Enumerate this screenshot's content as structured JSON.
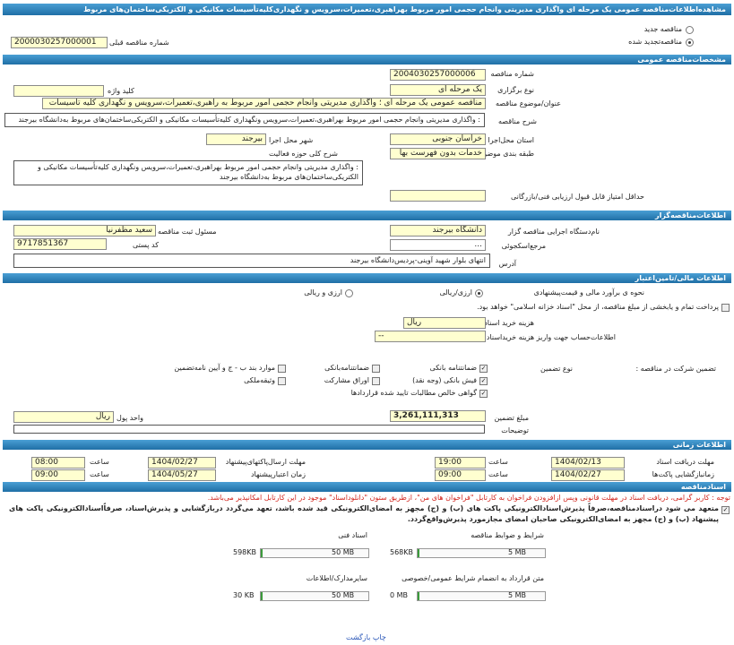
{
  "header": {
    "title": "مشاهده‌اطلاعات‌مناقصه عمومی یک مرحله ای واگذاری مدیریتی وانجام حجمی امور مربوط بهراهبری،تعمیرات،سرویس و نگهداری‌کلیه‌تأسیسات مکانیکی و الکتریکی‌ساختمان‌های مربوط"
  },
  "status": {
    "new": "مناقصه جدید",
    "renewed": "مناقصه‌تجدید شده",
    "previous_label": "شماره مناقصه قبلی",
    "previous": "2000030257000001"
  },
  "general": {
    "heading": "مشخصات‌مناقصه عمومی",
    "number_label": "شماره مناقصه",
    "number": "2004030257000006",
    "method_label": "نوع برگزاری",
    "method": "یک مرحله ای",
    "keyword_label": "کلید واژه",
    "subject_label": "عنوان/موضوع مناقصه",
    "subject": "مناقصه عمومی یک مرحله ای ؛ واگذاری مدیریتی وانجام حجمی امور مربوط به راهبری،تعمیرات،سرویس و نگهداری کلیه تاسیسات",
    "description_label": "شرح مناقصه",
    "description": ": واگذاری مدیریتی وانجام حجمی امور مربوط بهراهبری،تعمیرات،سرویس ونگهداری کلیه‌تأسیسات مکانیکی و الکتریکی‌ساختمان‌های مربوط به‌دانشگاه بیرجند",
    "province_label": "استان محل‌اجرا",
    "province": "خراسان جنوبی",
    "city_label": "شهر محل اجرا",
    "city": "بیرجند",
    "category_label": "طبقه بندی موضوعی",
    "category": "خدمات بدون فهرست بها",
    "scope_label": "شرح کلی حوزه فعالیت",
    "scope": ": واگذاری مدیریتی وانجام حجمی امور مربوط بهراهبری،تعمیرات،سرویس ونگهداری کلیه‌تأسیسات مکانیکی و الکتریکی‌ساختمان‌های مربوط به‌دانشگاه بیرجند",
    "min_score_label": "حداقل امتیاز قابل قبول ارزیابی فنی/بازرگانی"
  },
  "organizer": {
    "heading": "اطلاعات‌مناقصه‌گزار",
    "agency_label": "نام‌دستگاه اجرایی مناقصه گزار",
    "agency": "دانشگاه بیرجند",
    "registrar_label": "مسئول ثبت مناقصه",
    "registrar": "سعید مظفرنیا",
    "reference_label": "مرجع‌اسکجوئی",
    "reference": "...",
    "postal_label": "کد پستی",
    "postal": "9717851367",
    "address_label": "آدرس",
    "address": "انتهای بلوار شهید آوینی-پردیس‌دانشگاه بیرجند"
  },
  "finance": {
    "heading": "اطلاعات مالی/تامین‌اعتبار",
    "estimate_label": "نحوه ی برآورد مالی و قیمت‌پیشنهادی",
    "option_a": "ارزی/ریالی",
    "option_b": "ارزی و ریالی",
    "treasury": "پرداخت تمام و یابخشی از مبلغ مناقصه، از محل \"اسناد خزانه اسلامی\" خواهد بود.",
    "doc_fee_label": "هزینه خرید اسناد",
    "doc_fee_unit": "ریال",
    "account_label": "اطلاعات‌حساب جهت واریز هزینه خریداسناد",
    "account": "--",
    "guarantee_label": "تضمین شرکت در مناقصه :",
    "guarantee_type_label": "نوع تضمین",
    "guarantee_types": [
      "ضمانتنامه بانکی",
      "ضمانتنامه‌بانکی",
      "موارد بند ب - ج و آیین نامه‌تضمین",
      "فیش بانکی (وجه نقد)",
      "اوراق مشارکت",
      "وثیقه‌ملکی",
      "گواهی خالص مطالبات تایید شده قراردادها"
    ],
    "amount_label": "مبلغ تضمین",
    "amount": "3,261,111,313",
    "currency_label": "واحد پول",
    "currency": "ریال",
    "notes_label": "توضیحات"
  },
  "timing": {
    "heading": "اطلاعات زمانی",
    "hour_label": "ساعت",
    "rows": [
      {
        "label": "مهلت دریافت اسناد",
        "date": "1404/02/13",
        "time": "19:00"
      },
      {
        "label": "مهلت ارسال‌پاکتهای‌پیشنهاد",
        "date": "1404/02/27",
        "time": "08:00"
      },
      {
        "label": "زمانبازگشایی پاکت‌ها",
        "date": "1404/02/27",
        "time": "09:00"
      },
      {
        "label": "زمان اعتبارپیشنهاد",
        "date": "1404/05/27",
        "time": "09:00"
      }
    ]
  },
  "documents": {
    "heading": "اسنادمناقصه",
    "notice": "توجه : کاربر گرامی، دریافت اسناد در مهلت قانونی وپس ازافزودن فراخوان به کارتابل \"فراخوان های من\"، ازطریق ستون \"دانلوداسناد\" موجود در این کارتابل امکانپذیر می‌باشد.",
    "commitment": "متعهد می شود دراسناد‌مناقصه،صرفاً پذیرش‌اسنادالکترونیکی پاکت های (ب) و (ج) مجهز به امضای‌الکترونیکی قید شده باشد، تعهد می‌گردد دربازگشایی و پذیرش‌اسناد، صرفاً‌اسنادالکترونیکی پاکت های پیشنهاد (ب) و (ج) مجهز به امضای‌الکترونیکی صاحبان امضای مجازمورد پذیرش‌واقع‌گردد.",
    "files": [
      {
        "label": "شرایط و ضوابط مناقصه",
        "size": "568KB",
        "limit": "5 MB"
      },
      {
        "label": "اسناد فنی",
        "size": "598KB",
        "limit": "50 MB"
      },
      {
        "label": "متن قرارداد به انضمام شرایط عمومی/خصوصی",
        "size": "0 MB",
        "limit": "5 MB"
      },
      {
        "label": "سایرمدارک/اطلاعات",
        "size": "30 KB",
        "limit": "50 MB"
      }
    ]
  },
  "footer": {
    "links": [
      "چاپ",
      "بازگشت"
    ]
  }
}
